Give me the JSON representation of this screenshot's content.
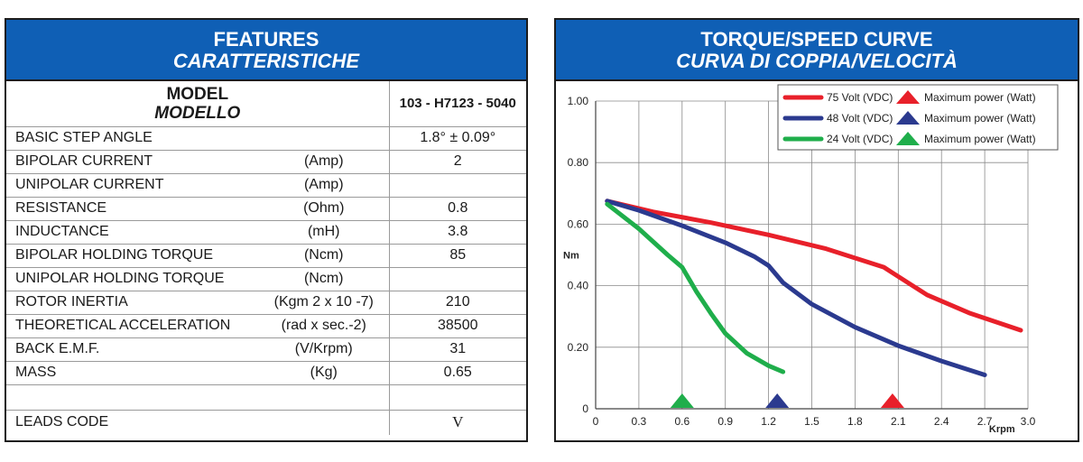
{
  "features": {
    "header_line1": "FEATURES",
    "header_line2": "CARATTERISTICHE",
    "model_label_line1": "MODEL",
    "model_label_line2": "MODELLO",
    "model_value": "103 - H7123 - 5040",
    "rows": [
      {
        "name": "BASIC STEP ANGLE",
        "unit": "",
        "value": "1.8° ± 0.09°"
      },
      {
        "name": "BIPOLAR CURRENT",
        "unit": "(Amp)",
        "value": "2"
      },
      {
        "name": "UNIPOLAR CURRENT",
        "unit": "(Amp)",
        "value": ""
      },
      {
        "name": "RESISTANCE",
        "unit": "(Ohm)",
        "value": "0.8"
      },
      {
        "name": "INDUCTANCE",
        "unit": "(mH)",
        "value": "3.8"
      },
      {
        "name": "BIPOLAR HOLDING TORQUE",
        "unit": "(Ncm)",
        "value": "85"
      },
      {
        "name": "UNIPOLAR HOLDING TORQUE",
        "unit": "(Ncm)",
        "value": ""
      },
      {
        "name": "ROTOR INERTIA",
        "unit": "(Kgm 2 x 10 -7)",
        "value": "210"
      },
      {
        "name": "THEORETICAL ACCELERATION",
        "unit": "(rad x sec.-2)",
        "value": "38500"
      },
      {
        "name": "BACK E.M.F.",
        "unit": "(V/Krpm)",
        "value": "31"
      },
      {
        "name": "MASS",
        "unit": "(Kg)",
        "value": "0.65"
      }
    ],
    "leads_label": "LEADS CODE",
    "leads_value": "V"
  },
  "chart_header": {
    "line1": "TORQUE/SPEED CURVE",
    "line2": "CURVA DI COPPIA/VELOCITÀ"
  },
  "chart_data": {
    "type": "line",
    "ylabel": "Nm",
    "xlabel": "Krpm",
    "xlim": [
      0,
      3.0
    ],
    "ylim": [
      0,
      1.0
    ],
    "x_ticks": [
      "0",
      "0.3",
      "0.6",
      "0.9",
      "1.2",
      "1.5",
      "1.8",
      "2.1",
      "2.4",
      "2.7",
      "3.0"
    ],
    "y_ticks": [
      "0",
      "0.20",
      "0.40",
      "0.60",
      "0.80",
      "1.00"
    ],
    "grid": true,
    "legend_position": "top-right",
    "legend_marker_label": "Maximum power (Watt)",
    "series": [
      {
        "name": "75 Volt (VDC)",
        "color": "#e8202a",
        "x": [
          0.08,
          0.4,
          0.8,
          1.2,
          1.6,
          2.0,
          2.05,
          2.3,
          2.6,
          2.95
        ],
        "y": [
          0.675,
          0.64,
          0.605,
          0.565,
          0.52,
          0.46,
          0.445,
          0.37,
          0.31,
          0.255
        ],
        "max_power_x": 2.06
      },
      {
        "name": "48 Volt (VDC)",
        "color": "#2b3a8f",
        "x": [
          0.08,
          0.3,
          0.6,
          0.9,
          1.1,
          1.2,
          1.3,
          1.5,
          1.8,
          2.1,
          2.4,
          2.7
        ],
        "y": [
          0.675,
          0.645,
          0.595,
          0.54,
          0.495,
          0.465,
          0.41,
          0.34,
          0.265,
          0.205,
          0.155,
          0.11
        ],
        "max_power_x": 1.26
      },
      {
        "name": "24 Volt (VDC)",
        "color": "#1fae4b",
        "x": [
          0.08,
          0.3,
          0.5,
          0.6,
          0.7,
          0.8,
          0.9,
          1.05,
          1.2,
          1.3
        ],
        "y": [
          0.665,
          0.585,
          0.5,
          0.46,
          0.38,
          0.31,
          0.245,
          0.18,
          0.14,
          0.12
        ],
        "max_power_x": 0.6
      }
    ]
  }
}
